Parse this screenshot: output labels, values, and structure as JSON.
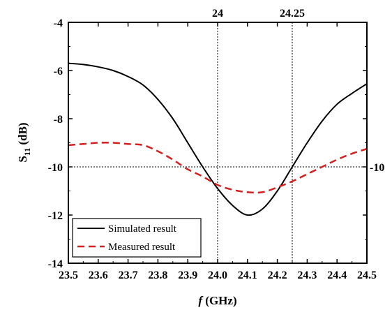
{
  "chart_data": {
    "type": "line",
    "xlabel": {
      "italic": "f",
      "rest": " (GHz)"
    },
    "ylabel": {
      "main": "S",
      "sub": "11",
      "rest": " (dB)"
    },
    "xlim": [
      23.5,
      24.5
    ],
    "ylim": [
      -14,
      -4
    ],
    "x_ticks": [
      "23.5",
      "23.6",
      "23.7",
      "23.8",
      "23.9",
      "24.0",
      "24.1",
      "24.2",
      "24.3",
      "24.4",
      "24.5"
    ],
    "y_ticks": [
      "-14",
      "-12",
      "-10",
      "-8",
      "-6",
      "-4"
    ],
    "reference_lines": [
      {
        "axis": "x",
        "value": 24.0,
        "label": "24"
      },
      {
        "axis": "x",
        "value": 24.25,
        "label": "24.25"
      },
      {
        "axis": "y",
        "value": -10,
        "label": "-10"
      }
    ],
    "legend_position": "bottom-left",
    "series": [
      {
        "name": "Simulated result",
        "color": "#000000",
        "style": "solid",
        "x": [
          23.5,
          23.55,
          23.6,
          23.65,
          23.7,
          23.75,
          23.8,
          23.85,
          23.9,
          23.95,
          24.0,
          24.05,
          24.1,
          24.15,
          24.2,
          24.25,
          24.3,
          24.35,
          24.4,
          24.45,
          24.5
        ],
        "y": [
          -5.7,
          -5.75,
          -5.85,
          -6.0,
          -6.25,
          -6.6,
          -7.2,
          -8.0,
          -9.0,
          -10.0,
          -10.9,
          -11.6,
          -12.0,
          -11.75,
          -11.0,
          -10.0,
          -9.0,
          -8.1,
          -7.4,
          -6.95,
          -6.55
        ]
      },
      {
        "name": "Measured result",
        "color": "#d42020",
        "style": "dashed",
        "x": [
          23.5,
          23.55,
          23.6,
          23.65,
          23.7,
          23.75,
          23.8,
          23.85,
          23.9,
          23.95,
          24.0,
          24.05,
          24.1,
          24.15,
          24.2,
          24.25,
          24.3,
          24.35,
          24.4,
          24.45,
          24.5
        ],
        "y": [
          -9.1,
          -9.05,
          -9.0,
          -9.0,
          -9.05,
          -9.1,
          -9.35,
          -9.7,
          -10.1,
          -10.4,
          -10.75,
          -10.95,
          -11.05,
          -11.05,
          -10.85,
          -10.6,
          -10.3,
          -10.0,
          -9.7,
          -9.45,
          -9.25
        ]
      }
    ]
  }
}
